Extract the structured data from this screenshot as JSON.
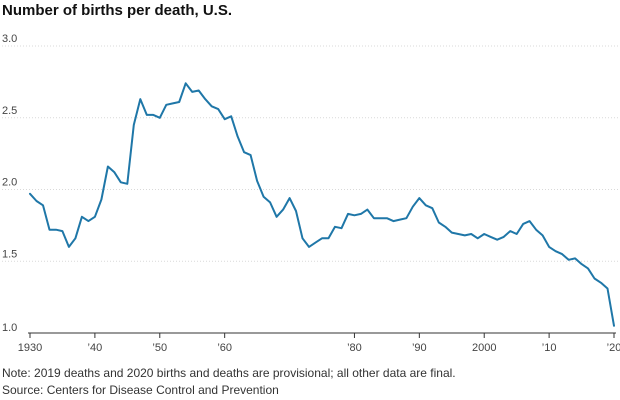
{
  "chart_data": {
    "type": "line",
    "title": "Number of births per death, U.S.",
    "xlabel": "",
    "ylabel": "",
    "xlim": [
      1930,
      2020
    ],
    "ylim": [
      1.0,
      3.0
    ],
    "y_ticks": [
      1.0,
      1.5,
      2.0,
      2.5,
      3.0
    ],
    "y_tick_labels": [
      "1.0",
      "1.5",
      "2.0",
      "2.5",
      "3.0"
    ],
    "x_ticks": [
      1930,
      1940,
      1950,
      1960,
      1980,
      1990,
      2000,
      2010,
      2020
    ],
    "x_tick_labels": [
      "1930",
      "’40",
      "’50",
      "’60",
      "’80",
      "’90",
      "2000",
      "’10",
      "’20"
    ],
    "grid": "horizontal",
    "color": "#1f77a8",
    "series": [
      {
        "x": [
          1930,
          1931,
          1932,
          1933,
          1934,
          1935,
          1936,
          1937,
          1938,
          1939,
          1940,
          1941,
          1942,
          1943,
          1944,
          1945,
          1946,
          1947,
          1948,
          1949,
          1950,
          1951,
          1952,
          1953,
          1954,
          1955,
          1956,
          1957,
          1958,
          1959,
          1960,
          1961,
          1962,
          1963,
          1964,
          1965,
          1966,
          1967,
          1968,
          1969,
          1970,
          1971,
          1972,
          1973,
          1974,
          1975,
          1976,
          1977,
          1978,
          1979,
          1980,
          1981,
          1982,
          1983,
          1984,
          1985,
          1986,
          1987,
          1988,
          1989,
          1990,
          1991,
          1992,
          1993,
          1994,
          1995,
          1996,
          1997,
          1998,
          1999,
          2000,
          2001,
          2002,
          2003,
          2004,
          2005,
          2006,
          2007,
          2008,
          2009,
          2010,
          2011,
          2012,
          2013,
          2014,
          2015,
          2016,
          2017,
          2018,
          2019,
          2020
        ],
        "values": [
          1.97,
          1.92,
          1.89,
          1.72,
          1.72,
          1.71,
          1.6,
          1.66,
          1.81,
          1.78,
          1.81,
          1.93,
          2.16,
          2.12,
          2.05,
          2.04,
          2.45,
          2.63,
          2.52,
          2.52,
          2.5,
          2.59,
          2.6,
          2.61,
          2.74,
          2.68,
          2.69,
          2.63,
          2.58,
          2.56,
          2.49,
          2.51,
          2.37,
          2.26,
          2.24,
          2.06,
          1.95,
          1.91,
          1.81,
          1.86,
          1.94,
          1.85,
          1.66,
          1.6,
          1.63,
          1.66,
          1.66,
          1.74,
          1.73,
          1.83,
          1.82,
          1.83,
          1.86,
          1.8,
          1.8,
          1.8,
          1.78,
          1.79,
          1.8,
          1.88,
          1.94,
          1.89,
          1.87,
          1.77,
          1.74,
          1.7,
          1.69,
          1.68,
          1.69,
          1.66,
          1.69,
          1.67,
          1.65,
          1.67,
          1.71,
          1.69,
          1.76,
          1.78,
          1.72,
          1.68,
          1.6,
          1.57,
          1.55,
          1.51,
          1.52,
          1.48,
          1.45,
          1.38,
          1.35,
          1.31,
          1.05
        ]
      }
    ]
  },
  "footnotes": {
    "note": "Note: 2019 deaths and 2020 births and deaths are provisional; all other data are final.",
    "source": "Source: Centers for Disease Control and Prevention"
  }
}
